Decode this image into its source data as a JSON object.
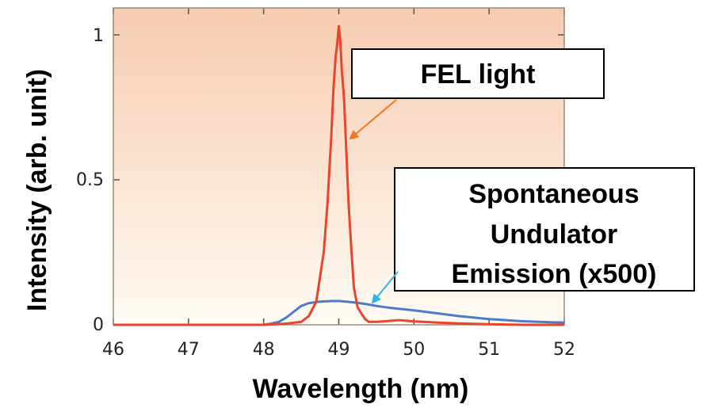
{
  "chart_data": {
    "type": "line",
    "xlabel": "Wavelength (nm)",
    "ylabel": "Intensity (arb. unit)",
    "xlim": [
      46,
      52
    ],
    "ylim": [
      0,
      1.05
    ],
    "x_ticks": [
      "46",
      "47",
      "48",
      "49",
      "50",
      "51",
      "52"
    ],
    "y_ticks": [
      "0",
      "0.5",
      "1"
    ],
    "grid": false,
    "series": [
      {
        "color": "#e8452a",
        "x": [
          46,
          46.5,
          47,
          47.5,
          48,
          48.3,
          48.5,
          48.6,
          48.7,
          48.8,
          48.85,
          48.9,
          48.93,
          48.96,
          48.98,
          49.0,
          49.02,
          49.04,
          49.07,
          49.1,
          49.13,
          49.17,
          49.2,
          49.25,
          49.3,
          49.35,
          49.4,
          49.5,
          49.6,
          49.8,
          50,
          50.3,
          50.6,
          51,
          51.5,
          52
        ],
        "y": [
          0,
          0,
          0,
          0,
          0,
          0.004,
          0.01,
          0.03,
          0.08,
          0.25,
          0.42,
          0.65,
          0.82,
          0.93,
          0.97,
          1.03,
          0.98,
          0.88,
          0.78,
          0.6,
          0.42,
          0.25,
          0.13,
          0.06,
          0.04,
          0.02,
          0.01,
          0.01,
          0.012,
          0.016,
          0.012,
          0.008,
          0.005,
          0.002,
          0,
          0
        ]
      },
      {
        "color": "#4a7cc9",
        "x": [
          46,
          47,
          48,
          48.1,
          48.2,
          48.3,
          48.4,
          48.5,
          48.6,
          48.75,
          48.9,
          49.0,
          49.1,
          49.2,
          49.35,
          49.5,
          49.7,
          50,
          50.3,
          50.6,
          51,
          51.4,
          51.8,
          52
        ],
        "y": [
          0,
          0,
          0,
          0.004,
          0.01,
          0.025,
          0.045,
          0.065,
          0.075,
          0.08,
          0.082,
          0.082,
          0.08,
          0.077,
          0.072,
          0.065,
          0.058,
          0.05,
          0.04,
          0.03,
          0.02,
          0.013,
          0.009,
          0.008
        ]
      }
    ],
    "annotations": [
      {
        "lines": [
          "FEL light"
        ],
        "arrow_color": "#f07820"
      },
      {
        "lines": [
          "Spontaneous",
          "Undulator",
          "Emission (x500)"
        ],
        "arrow_color": "#29b6e8"
      }
    ]
  },
  "colors": {
    "plot_bg_top": "#f6cbb0",
    "plot_bg_bottom": "#fffbf3",
    "frame": "#9a8a7a"
  }
}
